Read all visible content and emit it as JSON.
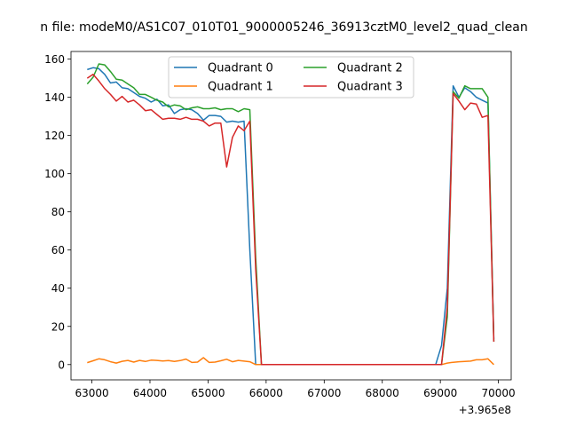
{
  "chart_data": {
    "type": "line",
    "title": "n file: modeM0/AS1C07_010T01_9000005246_36913cztM0_level2_quad_clean",
    "xlabel": "",
    "ylabel": "",
    "x_offset_label": "+3.965e8",
    "xlim": [
      62640,
      70220
    ],
    "ylim": [
      -8,
      164
    ],
    "xticks": [
      63000,
      64000,
      65000,
      66000,
      67000,
      68000,
      69000,
      70000
    ],
    "yticks": [
      0,
      20,
      40,
      60,
      80,
      100,
      120,
      140,
      160
    ],
    "grid": false,
    "legend": {
      "placement": "top-center",
      "columns": 2
    },
    "series": [
      {
        "name": "Quadrant 0",
        "color": "#1f77b4",
        "x": [
          62920,
          63020,
          63120,
          63220,
          63320,
          63420,
          63520,
          63620,
          63720,
          63820,
          63920,
          64020,
          64120,
          64220,
          64320,
          64420,
          64520,
          64620,
          64720,
          64820,
          64920,
          65020,
          65120,
          65220,
          65320,
          65420,
          65520,
          65620,
          65720,
          65820,
          65920,
          66020,
          66120,
          66220,
          66320,
          66420,
          66520,
          66620,
          66720,
          66820,
          66920,
          67020,
          67120,
          67220,
          67320,
          67420,
          67520,
          67620,
          67720,
          67820,
          67920,
          68020,
          68120,
          68220,
          68320,
          68420,
          68520,
          68620,
          68720,
          68820,
          68920,
          69020,
          69120,
          69220,
          69320,
          69420,
          69520,
          69620,
          69720,
          69820,
          69920
        ],
        "y": [
          154.5,
          155.5,
          155,
          152,
          147.5,
          148,
          145,
          144.5,
          142.5,
          140.5,
          139.5,
          137.5,
          139,
          135.5,
          136,
          131.5,
          133.5,
          134,
          133.5,
          131.5,
          128,
          130.5,
          130.5,
          130,
          127,
          127.5,
          127,
          127.5,
          60,
          0,
          0,
          0,
          0,
          0,
          0,
          0,
          0,
          0,
          0,
          0,
          0,
          0,
          0,
          0,
          0,
          0,
          0,
          0,
          0,
          0,
          0,
          0,
          0,
          0,
          0,
          0,
          0,
          0,
          0,
          0,
          0,
          10,
          40,
          146,
          140,
          145,
          143,
          140,
          138.5,
          137,
          13.5
        ]
      },
      {
        "name": "Quadrant 1",
        "color": "#ff7f0e",
        "x": [
          62920,
          63020,
          63120,
          63220,
          63320,
          63420,
          63520,
          63620,
          63720,
          63820,
          63920,
          64020,
          64120,
          64220,
          64320,
          64420,
          64520,
          64620,
          64720,
          64820,
          64920,
          65020,
          65120,
          65220,
          65320,
          65420,
          65520,
          65620,
          65720,
          65820,
          65920,
          66020,
          66120,
          66220,
          66320,
          66420,
          66520,
          66620,
          66720,
          66820,
          66920,
          67020,
          67120,
          67220,
          67320,
          67420,
          67520,
          67620,
          67720,
          67820,
          67920,
          68020,
          68120,
          68220,
          68320,
          68420,
          68520,
          68620,
          68720,
          68820,
          68920,
          69020,
          69120,
          69220,
          69320,
          69420,
          69520,
          69620,
          69720,
          69820,
          69920
        ],
        "y": [
          1,
          2,
          3,
          2.5,
          1.5,
          0.8,
          1.7,
          2.2,
          1.3,
          2.2,
          1.6,
          2.3,
          2.2,
          1.9,
          2.1,
          1.6,
          2.1,
          2.9,
          1.1,
          1.3,
          3.6,
          1.1,
          1.3,
          2,
          2.8,
          1.5,
          2.2,
          1.8,
          1.5,
          0,
          0,
          0,
          0,
          0,
          0,
          0,
          0,
          0,
          0,
          0,
          0,
          0,
          0,
          0,
          0,
          0,
          0,
          0,
          0,
          0,
          0,
          0,
          0,
          0,
          0,
          0,
          0,
          0,
          0,
          0,
          0,
          0,
          0.8,
          1.2,
          1.5,
          1.6,
          1.8,
          2.5,
          2.5,
          3,
          0
        ]
      },
      {
        "name": "Quadrant 2",
        "color": "#2ca02c",
        "x": [
          62920,
          63020,
          63120,
          63220,
          63320,
          63420,
          63520,
          63620,
          63720,
          63820,
          63920,
          64020,
          64120,
          64220,
          64320,
          64420,
          64520,
          64620,
          64720,
          64820,
          64920,
          65020,
          65120,
          65220,
          65320,
          65420,
          65520,
          65620,
          65720,
          65820,
          65920,
          66020,
          66120,
          66220,
          66320,
          66420,
          66520,
          66620,
          66720,
          66820,
          66920,
          67020,
          67120,
          67220,
          67320,
          67420,
          67520,
          67620,
          67720,
          67820,
          67920,
          68020,
          68120,
          68220,
          68320,
          68420,
          68520,
          68620,
          68720,
          68820,
          68920,
          69020,
          69120,
          69220,
          69320,
          69420,
          69520,
          69620,
          69720,
          69820,
          69920
        ],
        "y": [
          147,
          150.5,
          157.5,
          157,
          153.5,
          149.5,
          149,
          147,
          145,
          141.5,
          141.5,
          140,
          138.5,
          137.5,
          135,
          136,
          135.5,
          133.5,
          134.5,
          135,
          134,
          134,
          134.5,
          133.5,
          134,
          134,
          132.5,
          134,
          133.5,
          56,
          0,
          0,
          0,
          0,
          0,
          0,
          0,
          0,
          0,
          0,
          0,
          0,
          0,
          0,
          0,
          0,
          0,
          0,
          0,
          0,
          0,
          0,
          0,
          0,
          0,
          0,
          0,
          0,
          0,
          0,
          0,
          0,
          25,
          143,
          139.5,
          146,
          144.5,
          144.5,
          144.5,
          140,
          12
        ]
      },
      {
        "name": "Quadrant 3",
        "color": "#d62728",
        "x": [
          62920,
          63020,
          63120,
          63220,
          63320,
          63420,
          63520,
          63620,
          63720,
          63820,
          63920,
          64020,
          64120,
          64220,
          64320,
          64420,
          64520,
          64620,
          64720,
          64820,
          64920,
          65020,
          65120,
          65220,
          65320,
          65420,
          65520,
          65620,
          65720,
          65820,
          65920,
          66020,
          66120,
          66220,
          66320,
          66420,
          66520,
          66620,
          66720,
          66820,
          66920,
          67020,
          67120,
          67220,
          67320,
          67420,
          67520,
          67620,
          67720,
          67820,
          67920,
          68020,
          68120,
          68220,
          68320,
          68420,
          68520,
          68620,
          68720,
          68820,
          68920,
          69020,
          69120,
          69220,
          69320,
          69420,
          69520,
          69620,
          69720,
          69820,
          69920
        ],
        "y": [
          150,
          152,
          148.5,
          144.5,
          141.5,
          138,
          140.5,
          137.5,
          138.5,
          136,
          133,
          133.5,
          131,
          128.5,
          129,
          129,
          128.5,
          129.5,
          128.5,
          128.5,
          127.5,
          125,
          126.5,
          126.5,
          103.5,
          119,
          125,
          122.5,
          127.5,
          50,
          0,
          0,
          0,
          0,
          0,
          0,
          0,
          0,
          0,
          0,
          0,
          0,
          0,
          0,
          0,
          0,
          0,
          0,
          0,
          0,
          0,
          0,
          0,
          0,
          0,
          0,
          0,
          0,
          0,
          0,
          0,
          0,
          30,
          142,
          138,
          133.5,
          137,
          136.5,
          129.5,
          130.5,
          12
        ]
      }
    ]
  }
}
